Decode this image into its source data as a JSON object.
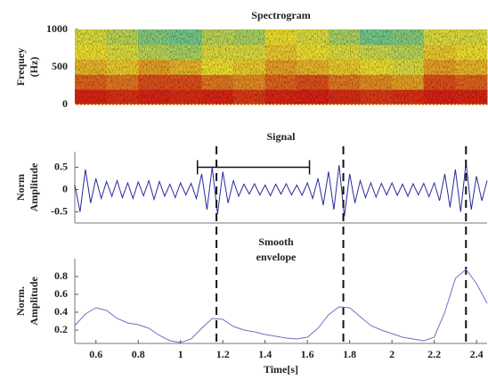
{
  "chart_data": [
    {
      "type": "heatmap",
      "title": "Spectrogram",
      "ylabel": [
        "Frequey",
        "(Hz)"
      ],
      "xbins": [
        0.5,
        0.65,
        0.8,
        0.95,
        1.1,
        1.25,
        1.4,
        1.55,
        1.7,
        1.85,
        2.0,
        2.15,
        2.3,
        2.45
      ],
      "ybins": [
        0,
        200,
        400,
        600,
        800,
        1000
      ],
      "z": [
        [
          0.95,
          0.92,
          0.95,
          0.93,
          0.95,
          0.9,
          0.95,
          0.96,
          0.93,
          0.9,
          0.92,
          0.96,
          0.95
        ],
        [
          0.8,
          0.75,
          0.85,
          0.85,
          0.75,
          0.7,
          0.8,
          0.85,
          0.75,
          0.7,
          0.65,
          0.85,
          0.8
        ],
        [
          0.6,
          0.55,
          0.65,
          0.6,
          0.5,
          0.55,
          0.65,
          0.6,
          0.55,
          0.5,
          0.45,
          0.65,
          0.6
        ],
        [
          0.5,
          0.45,
          0.35,
          0.3,
          0.45,
          0.45,
          0.55,
          0.5,
          0.45,
          0.4,
          0.35,
          0.55,
          0.5
        ],
        [
          0.45,
          0.35,
          0.2,
          0.15,
          0.35,
          0.3,
          0.5,
          0.45,
          0.3,
          0.15,
          0.2,
          0.45,
          0.45
        ]
      ],
      "zlim": [
        0,
        1
      ],
      "colormap": [
        "#40c0b0",
        "#f0e030",
        "#d81010"
      ],
      "xlim": [
        0.5,
        2.45
      ],
      "ylim": [
        0,
        1000
      ],
      "yticks": [
        0,
        500,
        1000
      ]
    },
    {
      "type": "line",
      "title": "Signal",
      "ylabel": [
        "Norm",
        "Amplitude"
      ],
      "color": "#2a2a9a",
      "x": [
        0.5,
        0.525,
        0.55,
        0.575,
        0.6,
        0.625,
        0.65,
        0.675,
        0.7,
        0.725,
        0.75,
        0.775,
        0.8,
        0.825,
        0.85,
        0.875,
        0.9,
        0.925,
        0.95,
        0.975,
        1,
        1.025,
        1.05,
        1.075,
        1.1,
        1.125,
        1.15,
        1.175,
        1.2,
        1.225,
        1.25,
        1.275,
        1.3,
        1.325,
        1.35,
        1.375,
        1.4,
        1.425,
        1.45,
        1.475,
        1.5,
        1.525,
        1.55,
        1.575,
        1.6,
        1.625,
        1.65,
        1.675,
        1.7,
        1.725,
        1.75,
        1.775,
        1.8,
        1.825,
        1.85,
        1.875,
        1.9,
        1.925,
        1.95,
        1.975,
        2,
        2.025,
        2.05,
        2.075,
        2.1,
        2.125,
        2.15,
        2.175,
        2.2,
        2.225,
        2.25,
        2.275,
        2.3,
        2.325,
        2.35,
        2.375,
        2.4,
        2.425,
        2.45
      ],
      "values": [
        0.1,
        -0.5,
        0.45,
        -0.3,
        0.25,
        -0.2,
        0.18,
        -0.15,
        0.2,
        -0.18,
        0.15,
        -0.2,
        0.17,
        -0.14,
        0.2,
        -0.22,
        0.18,
        -0.15,
        0.12,
        -0.18,
        0.15,
        -0.12,
        0.14,
        -0.2,
        0.35,
        -0.45,
        0.5,
        -0.55,
        0.4,
        -0.3,
        0.2,
        -0.15,
        0.12,
        -0.1,
        0.13,
        -0.12,
        0.1,
        -0.14,
        0.12,
        -0.1,
        0.13,
        -0.12,
        0.1,
        -0.13,
        0.15,
        -0.2,
        0.25,
        -0.35,
        0.4,
        -0.45,
        0.55,
        -0.6,
        0.35,
        -0.3,
        0.2,
        -0.18,
        0.15,
        -0.17,
        0.14,
        -0.12,
        0.15,
        -0.13,
        0.12,
        -0.15,
        0.13,
        -0.12,
        0.14,
        -0.16,
        0.15,
        -0.25,
        0.35,
        -0.4,
        0.45,
        -0.5,
        0.6,
        -0.45,
        0.3,
        -0.25,
        0.2
      ],
      "xlim": [
        0.5,
        2.45
      ],
      "ylim": [
        -0.75,
        0.85
      ],
      "yticks": [
        -0.5,
        0,
        0.5
      ],
      "vlines": [
        1.17,
        1.77,
        2.35
      ],
      "bracket": {
        "x": [
          1.08,
          1.61
        ],
        "y": 0.5
      }
    },
    {
      "type": "line",
      "annotation": [
        "Smooth",
        "envelope"
      ],
      "ylabel": [
        "Norm.",
        "Amplitude"
      ],
      "xlabel": "Time[s]",
      "color": "#7070c8",
      "x": [
        0.5,
        0.55,
        0.6,
        0.65,
        0.7,
        0.75,
        0.8,
        0.85,
        0.9,
        0.95,
        1,
        1.05,
        1.1,
        1.15,
        1.2,
        1.25,
        1.3,
        1.35,
        1.4,
        1.45,
        1.5,
        1.55,
        1.6,
        1.65,
        1.7,
        1.75,
        1.8,
        1.85,
        1.9,
        1.95,
        2,
        2.05,
        2.1,
        2.15,
        2.2,
        2.25,
        2.3,
        2.35,
        2.4,
        2.45
      ],
      "values": [
        0.25,
        0.38,
        0.45,
        0.42,
        0.33,
        0.28,
        0.26,
        0.22,
        0.14,
        0.08,
        0.06,
        0.1,
        0.22,
        0.33,
        0.32,
        0.24,
        0.2,
        0.18,
        0.15,
        0.13,
        0.11,
        0.1,
        0.12,
        0.22,
        0.37,
        0.46,
        0.45,
        0.35,
        0.25,
        0.2,
        0.16,
        0.12,
        0.1,
        0.08,
        0.12,
        0.4,
        0.78,
        0.88,
        0.72,
        0.5
      ],
      "xlim": [
        0.5,
        2.45
      ],
      "ylim": [
        0.05,
        1.0
      ],
      "yticks": [
        0.2,
        0.4,
        0.6,
        0.8
      ],
      "xticks": [
        0.6,
        0.8,
        1,
        1.2,
        1.4,
        1.6,
        1.8,
        2,
        2.2,
        2.4
      ]
    }
  ]
}
